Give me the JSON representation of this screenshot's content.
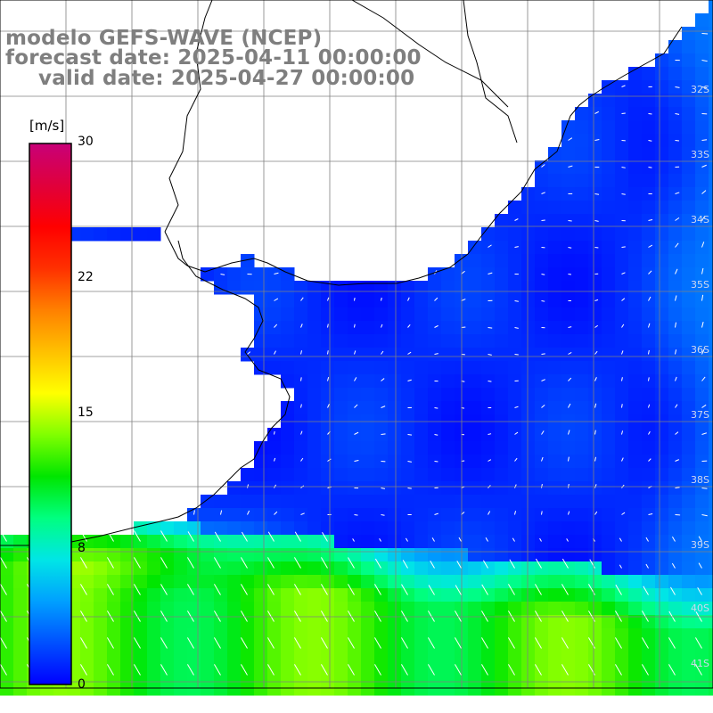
{
  "title": {
    "line1": "modelo GEFS-WAVE (NCEP)",
    "line2": "forecast date: 2025-04-11 00:00:00",
    "line3": "valid date: 2025-04-27 00:00:00"
  },
  "colorbar": {
    "unit": "[m/s]",
    "min": 0,
    "max": 30,
    "tick_labels": [
      "30",
      "22",
      "15",
      "8",
      "0"
    ],
    "tick_values": [
      30,
      22,
      15,
      8,
      0
    ],
    "colors": [
      "#0000ff",
      "#0050ff",
      "#00a0ff",
      "#00e6e6",
      "#00ff80",
      "#00e600",
      "#80ff00",
      "#ffff00",
      "#ffc000",
      "#ff8000",
      "#ff3000",
      "#ff0000",
      "#e0003c",
      "#c80078"
    ]
  },
  "map": {
    "latitude_labels": [
      "32S",
      "33S",
      "34S",
      "35S",
      "36S",
      "37S",
      "38S",
      "39S",
      "40S",
      "41S"
    ],
    "colors": {
      "land": "#ffffff",
      "coastline": "#000000",
      "grid": "#808080",
      "arrows": "#ffffff"
    }
  }
}
